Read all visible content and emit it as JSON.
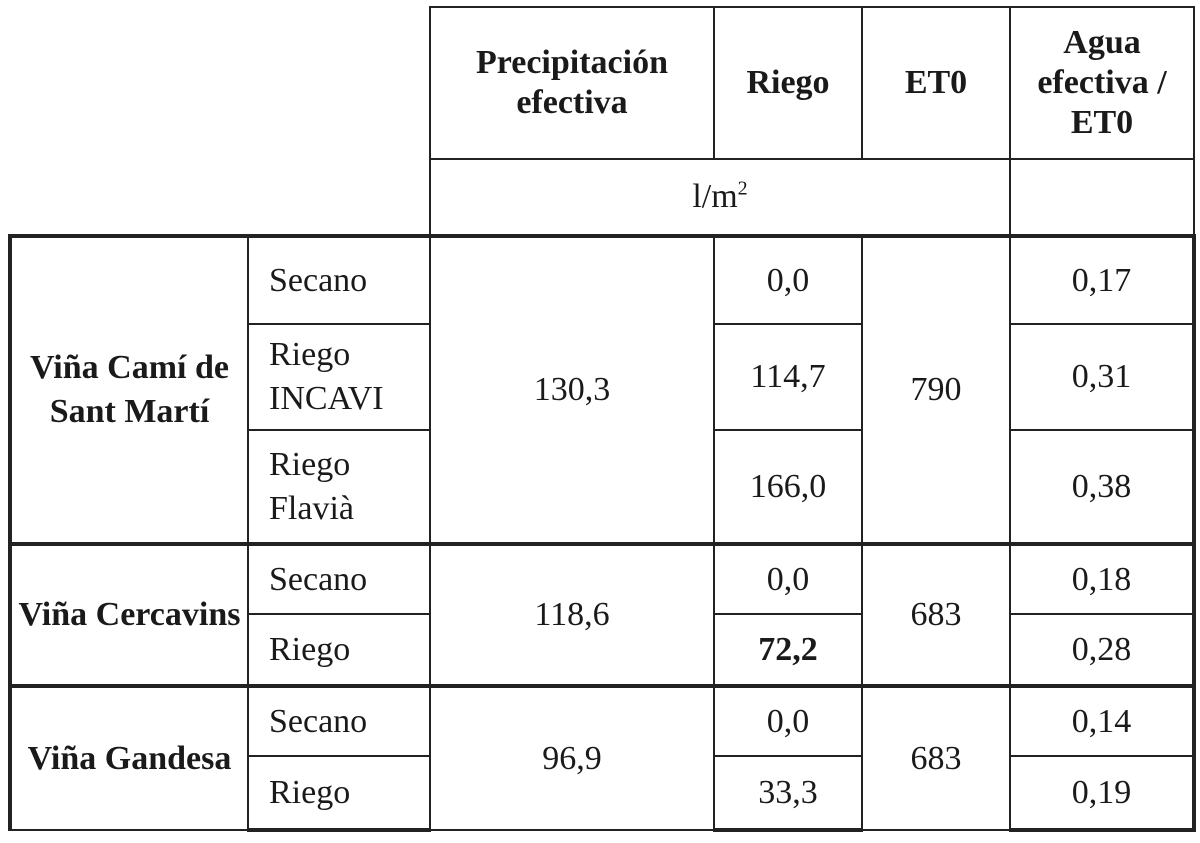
{
  "headers": {
    "precipitacion": "Precipitación efectiva",
    "riego": "Riego",
    "et0": "ET0",
    "agua": "Agua efectiva / ET0",
    "unit_base": "l/m",
    "unit_exp": "2"
  },
  "groups": [
    {
      "name": "Viña Camí de Sant Martí",
      "precipitacion": "130,3",
      "et0": "790",
      "rows": [
        {
          "tratamiento": "Secano",
          "riego": "0,0",
          "ratio": "0,17"
        },
        {
          "tratamiento": "Riego INCAVI",
          "riego": "114,7",
          "ratio": "0,31"
        },
        {
          "tratamiento": "Riego Flavià",
          "riego": "166,0",
          "ratio": "0,38"
        }
      ]
    },
    {
      "name": "Viña Cercavins",
      "precipitacion": "118,6",
      "et0": "683",
      "rows": [
        {
          "tratamiento": "Secano",
          "riego": "0,0",
          "ratio": "0,18"
        },
        {
          "tratamiento": "Riego",
          "riego": "72,2",
          "ratio": "0,28"
        }
      ]
    },
    {
      "name": "Viña Gandesa",
      "precipitacion": "96,9",
      "et0": "683",
      "rows": [
        {
          "tratamiento": "Secano",
          "riego": "0,0",
          "ratio": "0,14"
        },
        {
          "tratamiento": "Riego",
          "riego": "33,3",
          "ratio": "0,19"
        }
      ]
    }
  ]
}
